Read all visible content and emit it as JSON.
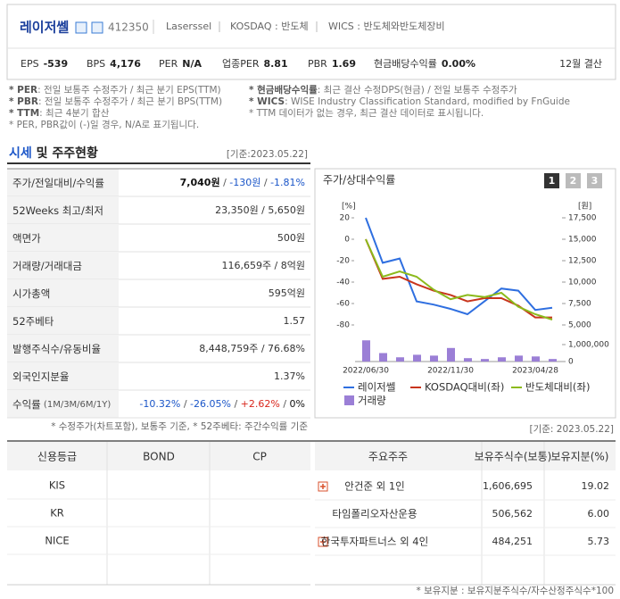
{
  "header": {
    "name": "레이저쎌",
    "code": "412350",
    "english_name": "Laserssel",
    "market": "KOSDAQ : 반도체",
    "wics": "WICS : 반도체와반도체장비",
    "metrics": [
      {
        "label": "EPS",
        "value": "-539"
      },
      {
        "label": "BPS",
        "value": "4,176"
      },
      {
        "label": "PER",
        "value": "N/A"
      },
      {
        "label": "업종PER",
        "value": "8.81"
      },
      {
        "label": "PBR",
        "value": "1.69"
      },
      {
        "label": "현금배당수익률",
        "value": "0.00%"
      }
    ],
    "fiscal": "12월 결산"
  },
  "notes": {
    "left": [
      {
        "term": "* PER",
        "text": ": 전일 보통주 수정주가 / 최근 분기 EPS(TTM)"
      },
      {
        "term": "* PBR",
        "text": ": 전일 보통주 수정주가 / 최근 분기 BPS(TTM)"
      },
      {
        "term": "* TTM",
        "text": ": 최근 4분기 합산"
      },
      {
        "term": "",
        "text": "* PER, PBR값이 (-)일 경우, N/A로 표기됩니다."
      }
    ],
    "right": [
      {
        "term": "* 현금배당수익률",
        "text": ": 최근 결산 수정DPS(현금) / 전일 보통주 수정주가"
      },
      {
        "term": "* WICS",
        "text": ": WISE Industry Classification Standard, modified by FnGuide"
      },
      {
        "term": "",
        "text": "* TTM 데이터가 없는 경우, 최근 결산 데이터로 표시됩니다."
      }
    ]
  },
  "section": {
    "title": "시세",
    "title_rest": " 및 주주현황",
    "date": "[기준:2023.05.22]"
  },
  "price_table": {
    "rows": [
      {
        "label": "주가/전일대비/수익률",
        "parts": [
          "7,040원",
          " / ",
          "-130원",
          " / ",
          "-1.81%"
        ],
        "colors": [
          "#111",
          "#555",
          "#1a55c8",
          "#555",
          "#1a55c8"
        ]
      },
      {
        "label": "52Weeks 최고/최저",
        "parts": [
          "23,350원 / 5,650원"
        ],
        "colors": [
          "#333"
        ]
      },
      {
        "label": "액면가",
        "parts": [
          "500원"
        ],
        "colors": [
          "#333"
        ]
      },
      {
        "label": "거래량/거래대금",
        "parts": [
          "116,659주 / 8억원"
        ],
        "colors": [
          "#333"
        ]
      },
      {
        "label": "시가총액",
        "parts": [
          "595억원"
        ],
        "colors": [
          "#333"
        ]
      },
      {
        "label": "52주베타",
        "parts": [
          "1.57"
        ],
        "colors": [
          "#333"
        ]
      },
      {
        "label": "발행주식수/유동비율",
        "parts": [
          "8,448,759주 / 76.68%"
        ],
        "colors": [
          "#333"
        ]
      },
      {
        "label": "외국인지분율",
        "parts": [
          "1.37%"
        ],
        "colors": [
          "#333"
        ]
      },
      {
        "label": "수익률",
        "note": " (1M/3M/6M/1Y)",
        "parts": [
          "-10.32%",
          " / ",
          "-26.05%",
          " / ",
          "+2.62%",
          " / ",
          "0%"
        ],
        "colors": [
          "#1a55c8",
          "#555",
          "#1a55c8",
          "#555",
          "#d9261c",
          "#555",
          "#111"
        ]
      }
    ],
    "footnote": "* 수정주가(차트포함), 보통주 기준, * 52주베타: 주간수익률 기준"
  },
  "price_chart": {
    "type": "line",
    "title": "주가/상대수익률",
    "buttons": [
      "1",
      "2",
      "3"
    ],
    "categories": [
      "2022/06/30",
      null,
      null,
      null,
      null,
      "2022/11/30",
      null,
      null,
      null,
      null,
      "2023/04/28",
      null
    ],
    "ylabel": "[%]",
    "y2label": "[원]",
    "ylim": [
      -85,
      25
    ],
    "yticks": [
      20,
      0,
      -20,
      -40,
      -60,
      -80
    ],
    "y2lim": [
      4375,
      18125
    ],
    "y2ticks": [
      {
        "value": 17500,
        "label": "17,500"
      },
      {
        "value": 15000,
        "label": "15,000"
      },
      {
        "value": 12500,
        "label": "12,500"
      },
      {
        "value": 10000,
        "label": "10,000"
      },
      {
        "value": 7500,
        "label": "7,500"
      },
      {
        "value": 5000,
        "label": "5,000"
      }
    ],
    "volume_lim": [
      0,
      1400000
    ],
    "volume_ticks": [
      {
        "value": 1000000,
        "label": "1,000,000"
      },
      0
    ],
    "series": [
      {
        "name": "레이저쎌",
        "color": "#2f6fe0",
        "axis": "y2",
        "values": [
          17500,
          12250,
          12750,
          7750,
          7375,
          6875,
          6250,
          7750,
          9250,
          9000,
          6750,
          7000
        ]
      },
      {
        "name": "KOSDAQ대비(좌)",
        "color": "#c8341c",
        "values": [
          0,
          -37,
          -35,
          -42,
          -48,
          -52,
          -58,
          -55,
          -55,
          -62,
          -73,
          -73
        ]
      },
      {
        "name": "반도체대비(좌)",
        "color": "#8cba1c",
        "values": [
          0,
          -35,
          -30,
          -35,
          -47,
          -56,
          -52,
          -54,
          -50,
          -63,
          -70,
          -75
        ]
      }
    ],
    "volume": {
      "name": "거래량",
      "color": "#9b7fd6",
      "values": [
        1250000,
        500000,
        250000,
        400000,
        350000,
        800000,
        200000,
        150000,
        250000,
        350000,
        300000,
        150000
      ]
    }
  },
  "holders_date": "[기준: 2023.05.22]",
  "credit_table": {
    "headers": [
      "신용등급",
      "BOND",
      "CP"
    ],
    "rows": [
      [
        "KIS"
      ],
      [
        "KR"
      ],
      [
        "NICE"
      ]
    ]
  },
  "holders_table": {
    "headers": [
      "주요주주",
      "보유주식수(보통)",
      "보유지분(%)"
    ],
    "rows": [
      {
        "name": "안건준 외 1인",
        "shares": "1,606,695",
        "stake": "19.02",
        "expand": true
      },
      {
        "name": "타임폴리오자산운용",
        "shares": "506,562",
        "stake": "6.00",
        "expand": false
      },
      {
        "name": "한국투자파트너스 외 4인",
        "shares": "484,251",
        "stake": "5.73",
        "expand": true
      }
    ]
  },
  "holders_note": "* 보유지분 : 보유지분주식수/자수산정주식수*100"
}
